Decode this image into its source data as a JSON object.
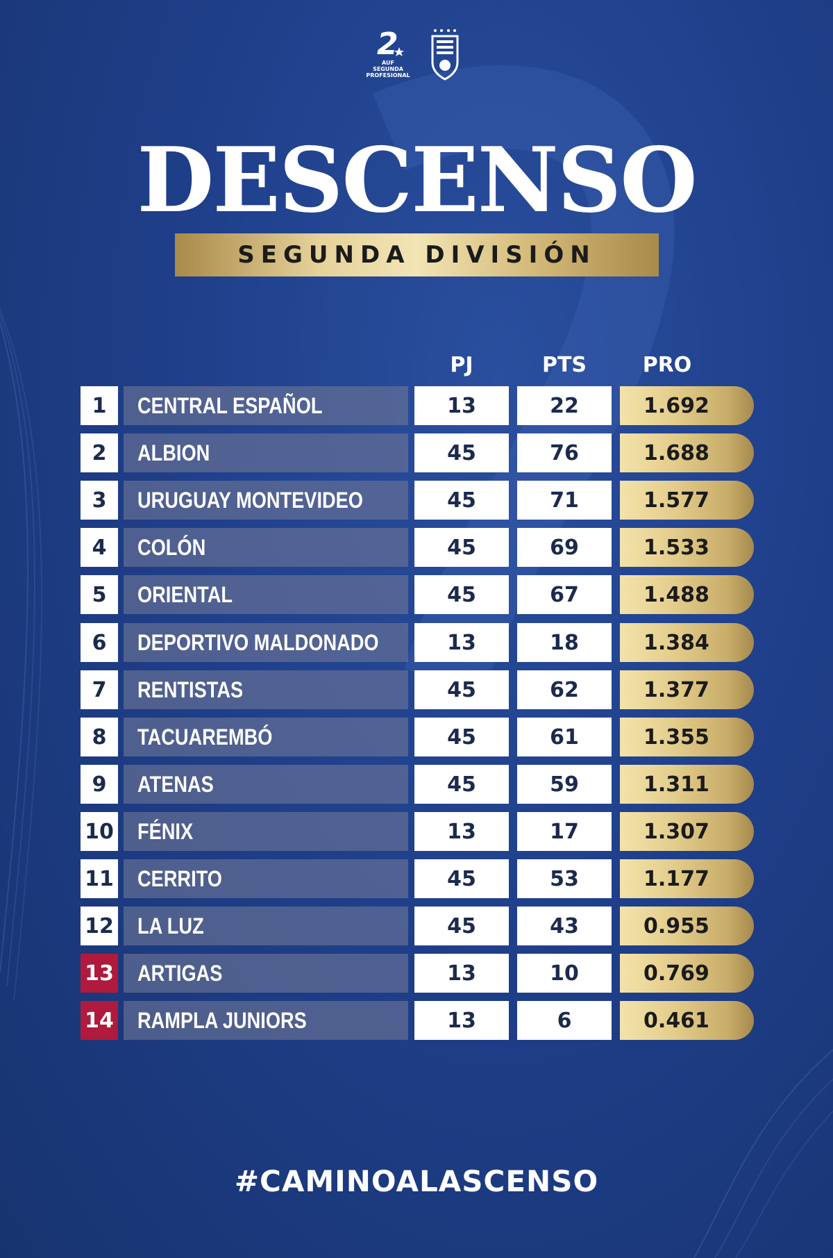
{
  "logos": {
    "league_text": "AUF\nSEGUNDA\nPROFESIONAL",
    "league_icon": "segunda-division-logo",
    "federation_icon": "auf-crest"
  },
  "title": "DESCENSO",
  "subtitle": "SEGUNDA DIVISIÓN",
  "columns": {
    "pj": "PJ",
    "pts": "PTS",
    "pro": "PRO"
  },
  "rows": [
    {
      "pos": "1",
      "team": "CENTRAL ESPAÑOL",
      "pj": "13",
      "pts": "22",
      "pro": "1.692",
      "relegation": false
    },
    {
      "pos": "2",
      "team": "ALBION",
      "pj": "45",
      "pts": "76",
      "pro": "1.688",
      "relegation": false
    },
    {
      "pos": "3",
      "team": "URUGUAY MONTEVIDEO",
      "pj": "45",
      "pts": "71",
      "pro": "1.577",
      "relegation": false
    },
    {
      "pos": "4",
      "team": "COLÓN",
      "pj": "45",
      "pts": "69",
      "pro": "1.533",
      "relegation": false
    },
    {
      "pos": "5",
      "team": "ORIENTAL",
      "pj": "45",
      "pts": "67",
      "pro": "1.488",
      "relegation": false
    },
    {
      "pos": "6",
      "team": "DEPORTIVO MALDONADO",
      "pj": "13",
      "pts": "18",
      "pro": "1.384",
      "relegation": false
    },
    {
      "pos": "7",
      "team": "RENTISTAS",
      "pj": "45",
      "pts": "62",
      "pro": "1.377",
      "relegation": false
    },
    {
      "pos": "8",
      "team": "TACUAREMBÓ",
      "pj": "45",
      "pts": "61",
      "pro": "1.355",
      "relegation": false
    },
    {
      "pos": "9",
      "team": "ATENAS",
      "pj": "45",
      "pts": "59",
      "pro": "1.311",
      "relegation": false
    },
    {
      "pos": "10",
      "team": "FÉNIX",
      "pj": "13",
      "pts": "17",
      "pro": "1.307",
      "relegation": false
    },
    {
      "pos": "11",
      "team": "CERRITO",
      "pj": "45",
      "pts": "53",
      "pro": "1.177",
      "relegation": false
    },
    {
      "pos": "12",
      "team": "LA LUZ",
      "pj": "45",
      "pts": "43",
      "pro": "0.955",
      "relegation": false
    },
    {
      "pos": "13",
      "team": "ARTIGAS",
      "pj": "13",
      "pts": "10",
      "pro": "0.769",
      "relegation": true
    },
    {
      "pos": "14",
      "team": "RAMPLA JUNIORS",
      "pj": "13",
      "pts": "6",
      "pro": "0.461",
      "relegation": true
    }
  ],
  "hashtag": "#CAMINOALASCENSO",
  "colors": {
    "background": "#1f3f8a",
    "relegation": "#b01a3c",
    "gold": "#e4cd8c"
  }
}
